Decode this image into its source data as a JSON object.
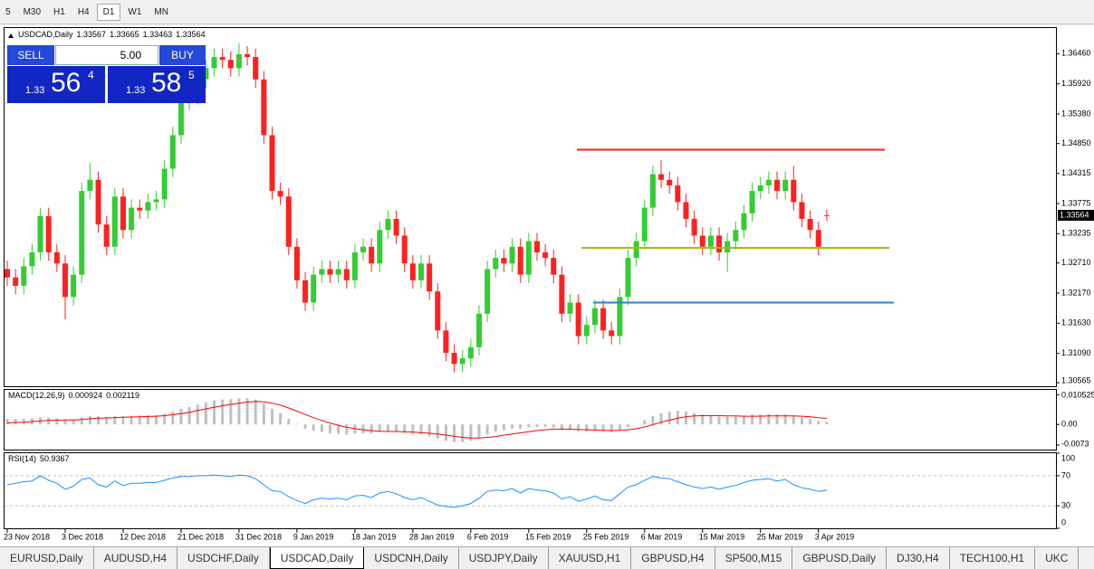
{
  "toolbar": {
    "timeframes": [
      "5",
      "M30",
      "H1",
      "H4",
      "D1",
      "W1",
      "MN"
    ],
    "active": "D1"
  },
  "trade_panel": {
    "sell": "SELL",
    "buy": "BUY",
    "lot": "5.00",
    "bid": [
      "1.33",
      "56",
      "4"
    ],
    "ask": [
      "1.33",
      "58",
      "5"
    ]
  },
  "chart_data": [
    {
      "type": "candlestick",
      "title": "USDCAD,Daily",
      "categories": [
        "23 Nov 2018",
        null,
        null,
        null,
        null,
        null,
        null,
        "3 Dec 2018",
        null,
        null,
        null,
        null,
        null,
        null,
        "12 Dec 2018",
        null,
        null,
        null,
        null,
        null,
        null,
        "21 Dec 2018",
        null,
        null,
        null,
        null,
        null,
        null,
        "31 Dec 2018",
        null,
        null,
        null,
        null,
        null,
        null,
        "9 Jan 2019",
        null,
        null,
        null,
        null,
        null,
        null,
        "18 Jan 2019",
        null,
        null,
        null,
        null,
        null,
        null,
        "28 Jan 2019",
        null,
        null,
        null,
        null,
        null,
        null,
        "6 Feb 2019",
        null,
        null,
        null,
        null,
        null,
        null,
        "15 Feb 2019",
        null,
        null,
        null,
        null,
        null,
        null,
        "25 Feb 2019",
        null,
        null,
        null,
        null,
        null,
        null,
        "6 Mar 2019",
        null,
        null,
        null,
        null,
        null,
        null,
        "15 Mar 2019",
        null,
        null,
        null,
        null,
        null,
        null,
        "25 Mar 2019",
        null,
        null,
        null,
        null,
        null,
        null,
        "3 Apr 2019",
        null
      ],
      "candles": [
        [
          1.326,
          1.3275,
          1.323,
          1.3245
        ],
        [
          1.3245,
          1.326,
          1.3215,
          1.323
        ],
        [
          1.323,
          1.328,
          1.3215,
          1.3265
        ],
        [
          1.3265,
          1.3305,
          1.325,
          1.329
        ],
        [
          1.329,
          1.337,
          1.3275,
          1.3355
        ],
        [
          1.3355,
          1.337,
          1.3275,
          1.329
        ],
        [
          1.329,
          1.3305,
          1.3255,
          1.327
        ],
        [
          1.327,
          1.3285,
          1.317,
          1.321
        ],
        [
          1.321,
          1.3265,
          1.3195,
          1.325
        ],
        [
          1.325,
          1.3415,
          1.3235,
          1.34
        ],
        [
          1.34,
          1.345,
          1.3385,
          1.342
        ],
        [
          1.342,
          1.3435,
          1.3325,
          1.334
        ],
        [
          1.334,
          1.3355,
          1.3285,
          1.33
        ],
        [
          1.33,
          1.3405,
          1.3285,
          1.339
        ],
        [
          1.339,
          1.3405,
          1.3315,
          1.333
        ],
        [
          1.333,
          1.3385,
          1.3315,
          1.337
        ],
        [
          1.337,
          1.3385,
          1.335,
          1.3365
        ],
        [
          1.3365,
          1.3395,
          1.335,
          1.338
        ],
        [
          1.338,
          1.34,
          1.3365,
          1.3385
        ],
        [
          1.3385,
          1.3455,
          1.337,
          1.344
        ],
        [
          1.344,
          1.3515,
          1.3425,
          1.35
        ],
        [
          1.35,
          1.3575,
          1.3485,
          1.356
        ],
        [
          1.356,
          1.3585,
          1.3545,
          1.357
        ],
        [
          1.357,
          1.3615,
          1.3555,
          1.36
        ],
        [
          1.36,
          1.3635,
          1.3585,
          1.362
        ],
        [
          1.362,
          1.3655,
          1.3605,
          1.364
        ],
        [
          1.364,
          1.3655,
          1.362,
          1.3635
        ],
        [
          1.3635,
          1.365,
          1.3605,
          1.362
        ],
        [
          1.362,
          1.3665,
          1.3605,
          1.3645
        ],
        [
          1.3645,
          1.366,
          1.3625,
          1.364
        ],
        [
          1.364,
          1.3655,
          1.3585,
          1.36
        ],
        [
          1.36,
          1.3615,
          1.3485,
          1.35
        ],
        [
          1.35,
          1.3515,
          1.3385,
          1.34
        ],
        [
          1.34,
          1.3415,
          1.3375,
          1.339
        ],
        [
          1.339,
          1.3405,
          1.3285,
          1.33
        ],
        [
          1.33,
          1.3315,
          1.3225,
          1.324
        ],
        [
          1.324,
          1.3255,
          1.3185,
          1.32
        ],
        [
          1.32,
          1.3265,
          1.3185,
          1.325
        ],
        [
          1.325,
          1.3275,
          1.3235,
          1.326
        ],
        [
          1.326,
          1.3275,
          1.3235,
          1.325
        ],
        [
          1.325,
          1.3275,
          1.3235,
          1.326
        ],
        [
          1.326,
          1.3275,
          1.3225,
          1.324
        ],
        [
          1.324,
          1.3305,
          1.3225,
          1.329
        ],
        [
          1.329,
          1.3315,
          1.3275,
          1.33
        ],
        [
          1.33,
          1.3315,
          1.3255,
          1.327
        ],
        [
          1.327,
          1.3345,
          1.3255,
          1.333
        ],
        [
          1.333,
          1.3365,
          1.3315,
          1.335
        ],
        [
          1.335,
          1.3365,
          1.3305,
          1.332
        ],
        [
          1.332,
          1.3335,
          1.3255,
          1.327
        ],
        [
          1.327,
          1.3285,
          1.3225,
          1.324
        ],
        [
          1.324,
          1.3285,
          1.3225,
          1.327
        ],
        [
          1.327,
          1.3285,
          1.3205,
          1.322
        ],
        [
          1.322,
          1.3235,
          1.3135,
          1.315
        ],
        [
          1.315,
          1.3165,
          1.3095,
          1.311
        ],
        [
          1.311,
          1.3125,
          1.3075,
          1.309
        ],
        [
          1.309,
          1.3115,
          1.3075,
          1.31
        ],
        [
          1.31,
          1.3135,
          1.3085,
          1.312
        ],
        [
          1.312,
          1.3195,
          1.3105,
          1.318
        ],
        [
          1.318,
          1.3275,
          1.3165,
          1.326
        ],
        [
          1.326,
          1.3295,
          1.3245,
          1.328
        ],
        [
          1.328,
          1.3295,
          1.3255,
          1.327
        ],
        [
          1.327,
          1.3315,
          1.3255,
          1.33
        ],
        [
          1.33,
          1.3315,
          1.3235,
          1.325
        ],
        [
          1.325,
          1.3325,
          1.3235,
          1.331
        ],
        [
          1.331,
          1.3325,
          1.3275,
          1.329
        ],
        [
          1.329,
          1.3305,
          1.3265,
          1.328
        ],
        [
          1.328,
          1.3295,
          1.3235,
          1.325
        ],
        [
          1.325,
          1.3265,
          1.3165,
          1.318
        ],
        [
          1.318,
          1.3215,
          1.3165,
          1.32
        ],
        [
          1.32,
          1.3215,
          1.3125,
          1.314
        ],
        [
          1.314,
          1.3175,
          1.3125,
          1.316
        ],
        [
          1.316,
          1.3205,
          1.3145,
          1.319
        ],
        [
          1.319,
          1.3205,
          1.3135,
          1.315
        ],
        [
          1.315,
          1.3165,
          1.3125,
          1.314
        ],
        [
          1.314,
          1.3225,
          1.3125,
          1.321
        ],
        [
          1.321,
          1.3295,
          1.3195,
          1.328
        ],
        [
          1.328,
          1.3325,
          1.3265,
          1.331
        ],
        [
          1.331,
          1.3385,
          1.3295,
          1.337
        ],
        [
          1.337,
          1.3445,
          1.3355,
          1.343
        ],
        [
          1.343,
          1.3455,
          1.3405,
          1.342
        ],
        [
          1.342,
          1.3435,
          1.3395,
          1.341
        ],
        [
          1.341,
          1.3425,
          1.3365,
          1.338
        ],
        [
          1.338,
          1.3395,
          1.3335,
          1.335
        ],
        [
          1.335,
          1.3365,
          1.3305,
          1.332
        ],
        [
          1.332,
          1.3335,
          1.3285,
          1.33
        ],
        [
          1.33,
          1.3335,
          1.3285,
          1.332
        ],
        [
          1.332,
          1.3335,
          1.3275,
          1.329
        ],
        [
          1.329,
          1.3325,
          1.3255,
          1.331
        ],
        [
          1.331,
          1.3345,
          1.3295,
          1.333
        ],
        [
          1.333,
          1.3375,
          1.3315,
          1.336
        ],
        [
          1.336,
          1.3415,
          1.3345,
          1.34
        ],
        [
          1.34,
          1.3425,
          1.3385,
          1.341
        ],
        [
          1.341,
          1.3435,
          1.3395,
          1.342
        ],
        [
          1.342,
          1.3435,
          1.3385,
          1.34
        ],
        [
          1.34,
          1.3435,
          1.3385,
          1.342
        ],
        [
          1.342,
          1.3445,
          1.3365,
          1.338
        ],
        [
          1.338,
          1.3395,
          1.3335,
          1.335
        ],
        [
          1.335,
          1.3365,
          1.3315,
          1.333
        ],
        [
          1.333,
          1.3345,
          1.3285,
          1.33
        ],
        [
          1.33567,
          1.33665,
          1.33463,
          1.33564
        ]
      ],
      "up_color": "#32cd32",
      "down_color": "#ff2020",
      "ylim": [
        1.305,
        1.3692
      ],
      "yticks": [
        {
          "value": 1.3646,
          "label": "1.36460"
        },
        {
          "value": 1.3592,
          "label": "1.35920"
        },
        {
          "value": 1.3538,
          "label": "1.35380"
        },
        {
          "value": 1.3485,
          "label": "1.34850"
        },
        1.34315,
        1.33775,
        1.33235,
        {
          "value": 1.3271,
          "label": "1.32710"
        },
        {
          "value": 1.3217,
          "label": "1.32170"
        },
        {
          "value": 1.3163,
          "label": "1.31630"
        },
        {
          "value": 1.3109,
          "label": "1.31090"
        },
        1.30565
      ],
      "levels": [
        {
          "value": 1.3474,
          "color": "#ff1a1a"
        },
        {
          "value": 1.3298,
          "color": "#a8b820"
        },
        {
          "value": 1.32,
          "color": "#2a7fd4"
        }
      ]
    },
    {
      "type": "macd",
      "title": "MACD(12,26,9)",
      "series": [
        {
          "type": "bar",
          "color": "#c0c0c0",
          "values": [
            0.002,
            0.0019,
            0.002,
            0.0021,
            0.0025,
            0.0024,
            0.0022,
            0.0018,
            0.0018,
            0.0025,
            0.003,
            0.0029,
            0.0027,
            0.003,
            0.0029,
            0.003,
            0.0031,
            0.0032,
            0.0033,
            0.0038,
            0.0045,
            0.0055,
            0.0062,
            0.007,
            0.0078,
            0.0085,
            0.0088,
            0.0089,
            0.0092,
            0.0093,
            0.0088,
            0.0075,
            0.0055,
            0.004,
            0.002,
            0.0002,
            -0.0015,
            -0.0022,
            -0.0027,
            -0.0032,
            -0.0033,
            -0.0036,
            -0.0033,
            -0.0031,
            -0.0032,
            -0.0027,
            -0.0024,
            -0.0025,
            -0.003,
            -0.0035,
            -0.0036,
            -0.0042,
            -0.005,
            -0.0058,
            -0.0063,
            -0.0062,
            -0.0058,
            -0.0048,
            -0.0035,
            -0.0025,
            -0.002,
            -0.0015,
            -0.0016,
            -0.001,
            -0.0009,
            -0.0009,
            -0.0012,
            -0.0018,
            -0.0019,
            -0.0025,
            -0.0025,
            -0.0022,
            -0.0025,
            -0.0027,
            -0.002,
            -0.001,
            0.0,
            0.0015,
            0.003,
            0.004,
            0.0045,
            0.0048,
            0.0046,
            0.004,
            0.0035,
            0.0033,
            0.0028,
            0.0027,
            0.0028,
            0.0031,
            0.0035,
            0.0036,
            0.0037,
            0.0035,
            0.0035,
            0.003,
            0.0024,
            0.0018,
            0.0012,
            0.000924
          ]
        },
        {
          "type": "line",
          "color": "#ff0000",
          "values": [
            0.0005,
            0.0007,
            0.0008,
            0.001,
            0.0012,
            0.0014,
            0.0015,
            0.0016,
            0.0016,
            0.0017,
            0.002,
            0.0022,
            0.0023,
            0.0024,
            0.0025,
            0.0026,
            0.0027,
            0.0028,
            0.0029,
            0.0031,
            0.0034,
            0.0038,
            0.0043,
            0.0049,
            0.0055,
            0.0061,
            0.0066,
            0.0071,
            0.0075,
            0.0079,
            0.0081,
            0.008,
            0.0075,
            0.0068,
            0.0058,
            0.0047,
            0.0035,
            0.0024,
            0.0014,
            0.0005,
            -0.0003,
            -0.001,
            -0.0015,
            -0.0019,
            -0.0022,
            -0.0024,
            -0.0025,
            -0.0025,
            -0.0026,
            -0.0027,
            -0.0029,
            -0.0031,
            -0.0034,
            -0.0038,
            -0.0042,
            -0.0046,
            -0.0048,
            -0.0048,
            -0.0046,
            -0.0043,
            -0.0038,
            -0.0034,
            -0.003,
            -0.0026,
            -0.0022,
            -0.0019,
            -0.0017,
            -0.0016,
            -0.0017,
            -0.0018,
            -0.0019,
            -0.002,
            -0.0021,
            -0.0022,
            -0.0021,
            -0.0019,
            -0.0015,
            -0.0009,
            -0.0001,
            0.0008,
            0.0015,
            0.0022,
            0.0027,
            0.003,
            0.0031,
            0.0031,
            0.0031,
            0.003,
            0.003,
            0.0029,
            0.0029,
            0.0029,
            0.003,
            0.003,
            0.003,
            0.003,
            0.0029,
            0.0027,
            0.0024,
            0.002119
          ]
        }
      ],
      "ylim": [
        -0.0089,
        0.0122
      ],
      "yticks": [
        0.010525,
        {
          "value": 0,
          "label": "0.00"
        },
        -0.0073
      ]
    },
    {
      "type": "rsi",
      "title": "RSI(14)",
      "color": "#1e90ff",
      "values": [
        58,
        60,
        62,
        63,
        70,
        64,
        60,
        52,
        56,
        65,
        67,
        58,
        55,
        63,
        57,
        60,
        60,
        61,
        61,
        64,
        67,
        69,
        69,
        70,
        70,
        71,
        70,
        69,
        71,
        70,
        66,
        58,
        50,
        49,
        42,
        37,
        33,
        38,
        40,
        39,
        40,
        38,
        43,
        44,
        41,
        47,
        49,
        46,
        41,
        38,
        41,
        36,
        31,
        29,
        28,
        30,
        33,
        40,
        49,
        51,
        50,
        53,
        47,
        53,
        51,
        50,
        47,
        39,
        42,
        36,
        39,
        43,
        38,
        37,
        46,
        55,
        58,
        64,
        69,
        67,
        66,
        62,
        58,
        55,
        53,
        55,
        52,
        55,
        57,
        61,
        64,
        65,
        66,
        63,
        65,
        58,
        54,
        52,
        49,
        50.9367
      ],
      "ylim": [
        0,
        100
      ],
      "yticks": [
        100,
        70,
        30,
        0
      ]
    }
  ],
  "tabs": {
    "items": [
      "EURUSD,Daily",
      "AUDUSD,H4",
      "USDCHF,Daily",
      "USDCAD,Daily",
      "USDCNH,Daily",
      "USDJPY,Daily",
      "XAUUSD,H1",
      "GBPUSD,H4",
      "SP500,M15",
      "GBPUSD,Daily",
      "DJ30,H4",
      "TECH100,H1",
      "UKC"
    ],
    "active": "USDCAD,Daily"
  }
}
